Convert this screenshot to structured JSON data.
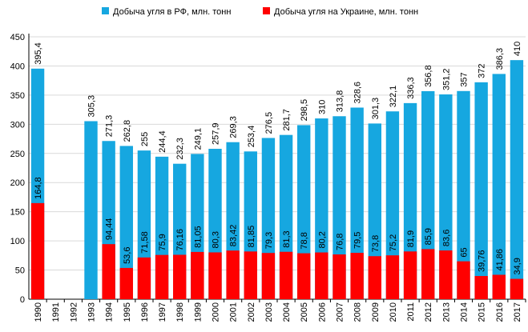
{
  "chart_data": {
    "type": "bar",
    "categories": [
      "1990",
      "1991",
      "1992",
      "1993",
      "1994",
      "1995",
      "1996",
      "1997",
      "1998",
      "1999",
      "2000",
      "2001",
      "2002",
      "2003",
      "2004",
      "2005",
      "2006",
      "2007",
      "2008",
      "2009",
      "2010",
      "2011",
      "2012",
      "2013",
      "2014",
      "2015",
      "2016",
      "2017"
    ],
    "series": [
      {
        "name": "Добыча угля в РФ, млн. тонн",
        "color": "#16a7e0",
        "values": [
          395.4,
          null,
          null,
          305.3,
          271.3,
          262.8,
          255,
          244.4,
          232.3,
          249.1,
          257.9,
          269.3,
          253.4,
          276.5,
          281.7,
          298.5,
          310,
          313.8,
          328.6,
          301.3,
          322.1,
          336.3,
          356.8,
          351.2,
          357,
          372,
          386.3,
          410
        ],
        "labels": [
          "395,4",
          "",
          "",
          "305,3",
          "271,3",
          "262,8",
          "255",
          "244,4",
          "232,3",
          "249,1",
          "257,9",
          "269,3",
          "253,4",
          "276,5",
          "281,7",
          "298,5",
          "310",
          "313,8",
          "328,6",
          "301,3",
          "322,1",
          "336,3",
          "356,8",
          "351,2",
          "357",
          "372",
          "386,3",
          "410"
        ]
      },
      {
        "name": "Добыча угля на Украине, млн. тонн",
        "color": "#ff0000",
        "values": [
          164.8,
          null,
          null,
          null,
          94.44,
          53.6,
          71.58,
          75.9,
          76.16,
          81.05,
          80.3,
          83.42,
          81.85,
          79.3,
          81.3,
          78.8,
          80.2,
          76.8,
          79.5,
          73.8,
          75.2,
          81.9,
          85.9,
          83.6,
          65,
          39.76,
          41.86,
          34.9
        ],
        "labels": [
          "164,8",
          "",
          "",
          "",
          "94,44",
          "53,6",
          "71,58",
          "75,9",
          "76,16",
          "81,05",
          "80,3",
          "83,42",
          "81,85",
          "79,3",
          "81,3",
          "78,8",
          "80,2",
          "76,8",
          "79,5",
          "73,8",
          "75,2",
          "81,9",
          "85,9",
          "83,6",
          "65",
          "39,76",
          "41,86",
          "34,9"
        ]
      }
    ],
    "yticks": [
      "0",
      "50",
      "100",
      "150",
      "200",
      "250",
      "300",
      "350",
      "400",
      "450"
    ],
    "ylim": [
      0,
      450
    ],
    "grid": "horizontal",
    "legend_position": "top",
    "title": "",
    "xlabel": "",
    "ylabel": ""
  }
}
